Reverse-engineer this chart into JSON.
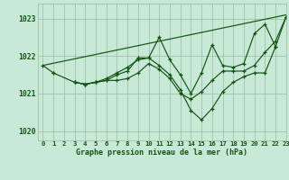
{
  "title": "Graphe pression niveau de la mer (hPa)",
  "bg_color": "#c8e8d8",
  "grid_color": "#99bb99",
  "line_color": "#115511",
  "xlim": [
    -0.5,
    23
  ],
  "ylim": [
    1019.75,
    1023.4
  ],
  "yticks": [
    1020,
    1021,
    1022,
    1023
  ],
  "xticks": [
    0,
    1,
    2,
    3,
    4,
    5,
    6,
    7,
    8,
    9,
    10,
    11,
    12,
    13,
    14,
    15,
    16,
    17,
    18,
    19,
    20,
    21,
    22,
    23
  ],
  "series": [
    {
      "x": [
        0,
        23
      ],
      "y": [
        1021.75,
        1023.1
      ],
      "has_markers": false
    },
    {
      "x": [
        0,
        1
      ],
      "y": [
        1021.75,
        1021.55
      ],
      "has_markers": true
    },
    {
      "x": [
        1,
        3,
        4,
        5,
        6,
        7,
        8,
        9,
        10,
        11,
        12,
        13,
        14,
        15,
        16,
        17,
        18,
        19,
        20,
        21,
        22,
        23
      ],
      "y": [
        1021.55,
        1021.3,
        1021.25,
        1021.3,
        1021.35,
        1021.5,
        1021.6,
        1021.95,
        1021.95,
        1021.75,
        1021.5,
        1021.1,
        1020.55,
        1020.3,
        1020.6,
        1021.05,
        1021.3,
        1021.45,
        1021.55,
        1021.55,
        1022.25,
        1023.05
      ],
      "has_markers": true
    },
    {
      "x": [
        3,
        4,
        5,
        6,
        7,
        8,
        9,
        10,
        11,
        12,
        13,
        14,
        15,
        16,
        17,
        18,
        19,
        20,
        21,
        22
      ],
      "y": [
        1021.3,
        1021.25,
        1021.3,
        1021.4,
        1021.55,
        1021.7,
        1021.9,
        1021.95,
        1022.5,
        1021.9,
        1021.5,
        1021.0,
        1021.55,
        1022.3,
        1021.75,
        1021.7,
        1021.8,
        1022.6,
        1022.85,
        1022.25
      ],
      "has_markers": true
    },
    {
      "x": [
        3,
        4,
        5,
        6,
        7,
        8,
        9,
        10,
        11,
        12,
        13,
        14,
        15,
        16,
        17,
        18,
        19,
        20,
        21,
        22,
        23
      ],
      "y": [
        1021.3,
        1021.25,
        1021.3,
        1021.35,
        1021.35,
        1021.4,
        1021.55,
        1021.8,
        1021.65,
        1021.4,
        1021.0,
        1020.85,
        1021.05,
        1021.35,
        1021.6,
        1021.6,
        1021.6,
        1021.75,
        1022.1,
        1022.4,
        1023.05
      ],
      "has_markers": true
    }
  ]
}
